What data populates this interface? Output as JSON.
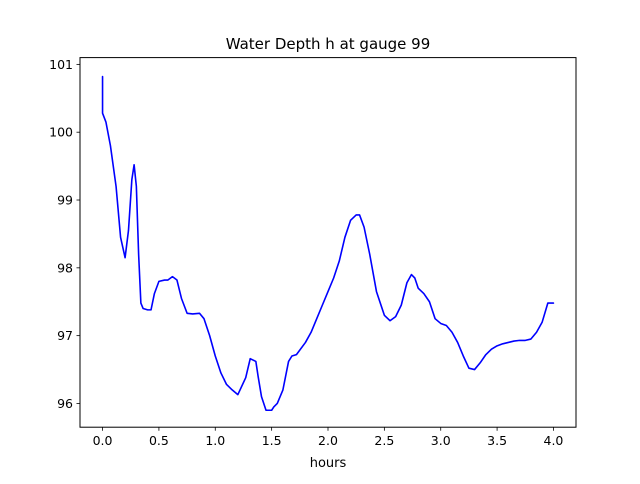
{
  "chart_data": {
    "type": "line",
    "title": "Water Depth h at gauge 99",
    "xlabel": "hours",
    "ylabel": "",
    "xlim": [
      -0.2,
      4.2
    ],
    "ylim": [
      95.65,
      101.1
    ],
    "xticks": [
      0.0,
      0.5,
      1.0,
      1.5,
      2.0,
      2.5,
      3.0,
      3.5,
      4.0
    ],
    "xtick_labels": [
      "0.0",
      "0.5",
      "1.0",
      "1.5",
      "2.0",
      "2.5",
      "3.0",
      "3.5",
      "4.0"
    ],
    "yticks": [
      96,
      97,
      98,
      99,
      100,
      101
    ],
    "ytick_labels": [
      "96",
      "97",
      "98",
      "99",
      "100",
      "101"
    ],
    "grid": false,
    "legend": "none",
    "series": [
      {
        "color": "#0000ff",
        "x": [
          0.0,
          0.0,
          0.0,
          0.03,
          0.07,
          0.12,
          0.16,
          0.2,
          0.23,
          0.26,
          0.28,
          0.3,
          0.32,
          0.34,
          0.36,
          0.4,
          0.43,
          0.46,
          0.5,
          0.55,
          0.58,
          0.62,
          0.66,
          0.7,
          0.75,
          0.8,
          0.86,
          0.9,
          0.95,
          1.0,
          1.05,
          1.1,
          1.15,
          1.2,
          1.27,
          1.31,
          1.36,
          1.38,
          1.41,
          1.45,
          1.5,
          1.52,
          1.55,
          1.6,
          1.65,
          1.68,
          1.72,
          1.8,
          1.85,
          1.9,
          1.95,
          2.0,
          2.05,
          2.1,
          2.15,
          2.2,
          2.25,
          2.28,
          2.32,
          2.37,
          2.43,
          2.5,
          2.55,
          2.6,
          2.65,
          2.7,
          2.74,
          2.77,
          2.8,
          2.85,
          2.9,
          2.95,
          3.0,
          3.05,
          3.1,
          3.15,
          3.2,
          3.25,
          3.3,
          3.35,
          3.4,
          3.45,
          3.5,
          3.55,
          3.6,
          3.65,
          3.7,
          3.75,
          3.8,
          3.85,
          3.9,
          3.95,
          4.0
        ],
        "y": [
          100.82,
          100.28,
          100.28,
          100.15,
          99.8,
          99.2,
          98.45,
          98.15,
          98.55,
          99.3,
          99.52,
          99.2,
          98.2,
          97.48,
          97.4,
          97.38,
          97.38,
          97.62,
          97.8,
          97.82,
          97.82,
          97.87,
          97.82,
          97.55,
          97.33,
          97.32,
          97.33,
          97.25,
          97.0,
          96.7,
          96.45,
          96.28,
          96.2,
          96.13,
          96.38,
          96.66,
          96.62,
          96.4,
          96.1,
          95.9,
          95.9,
          95.95,
          96.0,
          96.2,
          96.62,
          96.7,
          96.72,
          96.9,
          97.05,
          97.25,
          97.45,
          97.65,
          97.85,
          98.1,
          98.45,
          98.7,
          98.78,
          98.78,
          98.6,
          98.2,
          97.65,
          97.3,
          97.22,
          97.28,
          97.45,
          97.78,
          97.9,
          97.85,
          97.7,
          97.62,
          97.5,
          97.25,
          97.18,
          97.15,
          97.05,
          96.9,
          96.7,
          96.52,
          96.5,
          96.6,
          96.72,
          96.8,
          96.85,
          96.88,
          96.9,
          96.92,
          96.93,
          96.93,
          96.95,
          97.05,
          97.2,
          97.48,
          97.48
        ]
      }
    ]
  }
}
